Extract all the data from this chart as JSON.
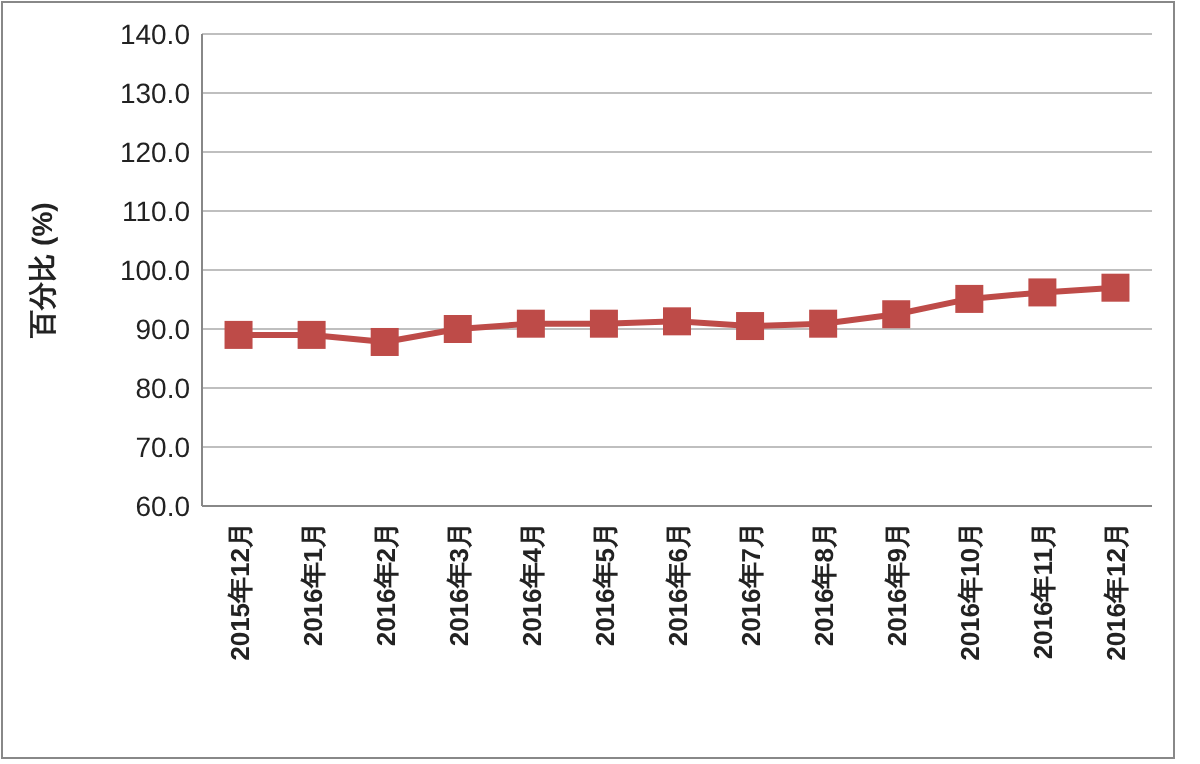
{
  "chart_data": {
    "type": "line",
    "ylabel": "百分比 (%)",
    "categories": [
      "2015年12月",
      "2016年1月",
      "2016年2月",
      "2016年3月",
      "2016年4月",
      "2016年5月",
      "2016年6月",
      "2016年7月",
      "2016年8月",
      "2016年9月",
      "2016年10月",
      "2016年11月",
      "2016年12月"
    ],
    "series": [
      {
        "color": "#be4b48",
        "values": [
          89.0,
          89.0,
          87.8,
          90.0,
          90.9,
          90.9,
          91.3,
          90.5,
          90.9,
          92.5,
          95.1,
          96.2,
          97.0
        ]
      }
    ],
    "ylim": [
      60,
      140
    ],
    "yticks": [
      {
        "value": 60,
        "label": "60.0"
      },
      {
        "value": 70,
        "label": "70.0"
      },
      {
        "value": 80,
        "label": "80.0"
      },
      {
        "value": 90,
        "label": "90.0"
      },
      {
        "value": 100,
        "label": "100.0"
      },
      {
        "value": 110,
        "label": "110.0"
      },
      {
        "value": 120,
        "label": "120.0"
      },
      {
        "value": 130,
        "label": "130.0"
      },
      {
        "value": 140,
        "label": "140.0"
      }
    ],
    "grid": "y",
    "marker": "square",
    "line_style": "solid"
  }
}
